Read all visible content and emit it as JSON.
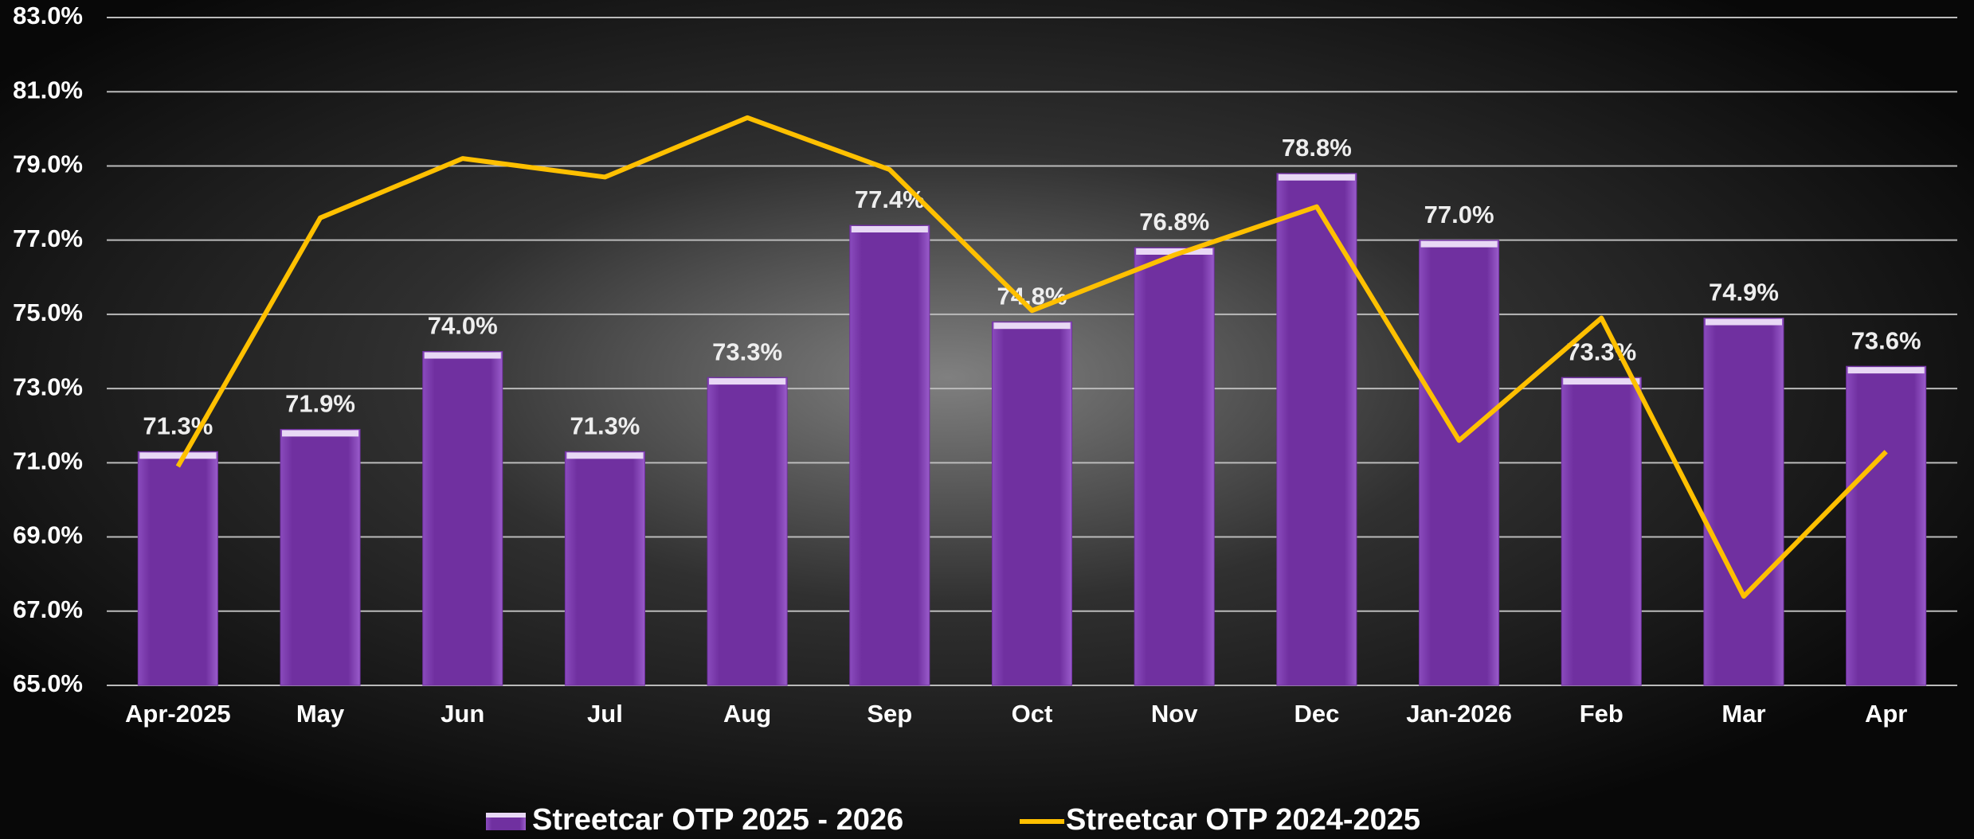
{
  "chart_data": {
    "type": "bar",
    "categories": [
      "Apr-2025",
      "May",
      "Jun",
      "Jul",
      "Aug",
      "Sep",
      "Oct",
      "Nov",
      "Dec",
      "Jan-2026",
      "Feb",
      "Mar",
      "Apr"
    ],
    "series": [
      {
        "name": "Streetcar OTP 2025 - 2026",
        "type": "bar",
        "color": "#7030a0",
        "values": [
          71.3,
          71.9,
          74.0,
          71.3,
          73.3,
          77.4,
          74.8,
          76.8,
          78.8,
          77.0,
          73.3,
          74.9,
          73.6
        ],
        "value_labels": [
          "71.3%",
          "71.9%",
          "74.0%",
          "71.3%",
          "73.3%",
          "77.4%",
          "74.8%",
          "76.8%",
          "78.8%",
          "77.0%",
          "73.3%",
          "74.9%",
          "73.6%"
        ]
      },
      {
        "name": "Streetcar OTP  2024-2025",
        "type": "line",
        "color": "#ffc000",
        "values": [
          70.9,
          77.6,
          79.2,
          78.7,
          80.3,
          78.9,
          75.1,
          76.6,
          77.9,
          71.6,
          74.9,
          67.4,
          71.3
        ]
      }
    ],
    "ylim": [
      65,
      83
    ],
    "yticks": [
      {
        "value": 65,
        "label": "65.0%"
      },
      {
        "value": 67,
        "label": "67.0%"
      },
      {
        "value": 69,
        "label": "69.0%"
      },
      {
        "value": 71,
        "label": "71.0%"
      },
      {
        "value": 73,
        "label": "73.0%"
      },
      {
        "value": 75,
        "label": "75.0%"
      },
      {
        "value": 77,
        "label": "77.0%"
      },
      {
        "value": 79,
        "label": "79.0%"
      },
      {
        "value": 81,
        "label": "81.0%"
      },
      {
        "value": 83,
        "label": "83.0%"
      }
    ],
    "grid": true,
    "legend": "bottom"
  }
}
